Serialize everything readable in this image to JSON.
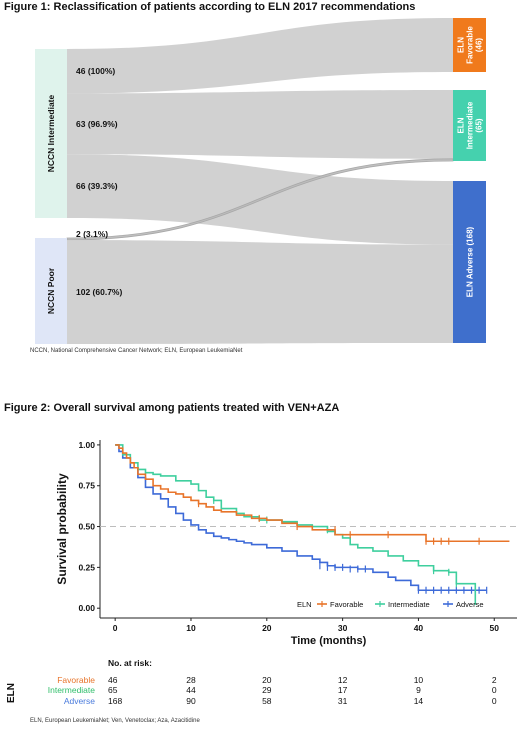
{
  "figure1": {
    "title": "Figure 1: Reclassification of patients according to ELN 2017 recommendations",
    "footnote": "NCCN, National Comprehensive Cancer Network; ELN, European LeukemiaNet"
  },
  "figure2": {
    "title": "Figure 2: Overall survival among patients treated with VEN+AZA",
    "footnote": "ELN, European LeukemiaNet; Ven, Venetoclax; Aza, Azacitidine"
  },
  "chart_data": [
    {
      "type": "sankey",
      "source_nodes": [
        {
          "name": "NCCN Intermediate",
          "color": "#dff3ec"
        },
        {
          "name": "NCCN Poor",
          "color": "#dfe6f7"
        }
      ],
      "target_nodes": [
        {
          "name": "ELN Favorable (46)",
          "color": "#f07a1c"
        },
        {
          "name": "ELN Intermediate (65)",
          "color": "#45d1ae"
        },
        {
          "name": "ELN Adverse (168)",
          "color": "#3f6fcc"
        }
      ],
      "flows": [
        {
          "from": "NCCN Intermediate",
          "to": "ELN Favorable (46)",
          "value": 46,
          "label": "46 (100%)"
        },
        {
          "from": "NCCN Intermediate",
          "to": "ELN Intermediate (65)",
          "value": 63,
          "label": "63 (96.9%)"
        },
        {
          "from": "NCCN Intermediate",
          "to": "ELN Adverse (168)",
          "value": 66,
          "label": "66 (39.3%)"
        },
        {
          "from": "NCCN Poor",
          "to": "ELN Intermediate (65)",
          "value": 2,
          "label": "2 (3.1%)"
        },
        {
          "from": "NCCN Poor",
          "to": "ELN Adverse (168)",
          "value": 102,
          "label": "102 (60.7%)"
        }
      ]
    },
    {
      "type": "line",
      "subtype": "kaplan-meier",
      "xlabel": "Time (months)",
      "ylabel": "Survival probability",
      "xlim": [
        -2,
        53
      ],
      "ylim": [
        -0.06,
        1.03
      ],
      "xticks": [
        0,
        10,
        20,
        30,
        40,
        50
      ],
      "yticks": [
        0.0,
        0.25,
        0.5,
        0.75,
        1.0
      ],
      "ytick_labels": [
        "0.00",
        "0.25",
        "0.50",
        "0.75",
        "1.00"
      ],
      "reference_line": 0.5,
      "legend_title": "ELN",
      "legend_position": "bottom-inside",
      "series": [
        {
          "name": "Favorable",
          "color": "#e8742a",
          "points": [
            [
              0,
              1.0
            ],
            [
              0.5,
              0.98
            ],
            [
              1,
              0.95
            ],
            [
              1.5,
              0.92
            ],
            [
              2,
              0.89
            ],
            [
              2.5,
              0.86
            ],
            [
              3,
              0.82
            ],
            [
              4,
              0.79
            ],
            [
              5,
              0.75
            ],
            [
              6,
              0.73
            ],
            [
              7,
              0.71
            ],
            [
              8,
              0.7
            ],
            [
              9,
              0.68
            ],
            [
              10,
              0.66
            ],
            [
              11,
              0.64
            ],
            [
              12,
              0.62
            ],
            [
              13,
              0.6
            ],
            [
              14,
              0.59
            ],
            [
              16,
              0.57
            ],
            [
              18,
              0.55
            ],
            [
              20,
              0.54
            ],
            [
              22,
              0.52
            ],
            [
              24,
              0.5
            ],
            [
              26,
              0.48
            ],
            [
              27,
              0.48
            ],
            [
              28,
              0.48
            ],
            [
              29,
              0.45
            ],
            [
              31,
              0.45
            ],
            [
              35,
              0.45
            ],
            [
              40,
              0.45
            ],
            [
              41,
              0.41
            ],
            [
              48,
              0.41
            ],
            [
              52,
              0.41
            ]
          ],
          "censors": [
            [
              11,
              0.64
            ],
            [
              19,
              0.55
            ],
            [
              24,
              0.5
            ],
            [
              29,
              0.48
            ],
            [
              31,
              0.45
            ],
            [
              36,
              0.45
            ],
            [
              41,
              0.41
            ],
            [
              42,
              0.41
            ],
            [
              43,
              0.41
            ],
            [
              44,
              0.41
            ],
            [
              48,
              0.41
            ]
          ]
        },
        {
          "name": "Intermediate",
          "color": "#3fcf9e",
          "points": [
            [
              0,
              1.0
            ],
            [
              1,
              0.94
            ],
            [
              2,
              0.89
            ],
            [
              3,
              0.85
            ],
            [
              4,
              0.83
            ],
            [
              5,
              0.82
            ],
            [
              6,
              0.81
            ],
            [
              8,
              0.78
            ],
            [
              10,
              0.76
            ],
            [
              11,
              0.72
            ],
            [
              12,
              0.68
            ],
            [
              13,
              0.66
            ],
            [
              14,
              0.61
            ],
            [
              16,
              0.58
            ],
            [
              17,
              0.56
            ],
            [
              19,
              0.54
            ],
            [
              21,
              0.54
            ],
            [
              22,
              0.53
            ],
            [
              24,
              0.51
            ],
            [
              26,
              0.5
            ],
            [
              28,
              0.47
            ],
            [
              29,
              0.45
            ],
            [
              30,
              0.43
            ],
            [
              31,
              0.39
            ],
            [
              32,
              0.37
            ],
            [
              34,
              0.35
            ],
            [
              36,
              0.32
            ],
            [
              38,
              0.29
            ],
            [
              40,
              0.26
            ],
            [
              42,
              0.23
            ],
            [
              44,
              0.22
            ],
            [
              45,
              0.15
            ],
            [
              46,
              0.15
            ],
            [
              47,
              0.15
            ],
            [
              47.5,
              0.02
            ]
          ],
          "censors": [
            [
              13,
              0.66
            ],
            [
              20,
              0.54
            ],
            [
              28,
              0.48
            ],
            [
              42,
              0.23
            ],
            [
              44,
              0.22
            ],
            [
              45,
              0.15
            ]
          ]
        },
        {
          "name": "Adverse",
          "color": "#3d6ad8",
          "points": [
            [
              0,
              1.0
            ],
            [
              0.5,
              0.96
            ],
            [
              1,
              0.92
            ],
            [
              2,
              0.86
            ],
            [
              3,
              0.8
            ],
            [
              4,
              0.74
            ],
            [
              5,
              0.7
            ],
            [
              6,
              0.67
            ],
            [
              7,
              0.62
            ],
            [
              8,
              0.58
            ],
            [
              9,
              0.54
            ],
            [
              10,
              0.51
            ],
            [
              11,
              0.48
            ],
            [
              12,
              0.46
            ],
            [
              13,
              0.44
            ],
            [
              14,
              0.43
            ],
            [
              15,
              0.42
            ],
            [
              16,
              0.41
            ],
            [
              17,
              0.4
            ],
            [
              18,
              0.39
            ],
            [
              20,
              0.37
            ],
            [
              22,
              0.35
            ],
            [
              24,
              0.32
            ],
            [
              26,
              0.3
            ],
            [
              27,
              0.28
            ],
            [
              28,
              0.26
            ],
            [
              29,
              0.25
            ],
            [
              31,
              0.25
            ],
            [
              32,
              0.24
            ],
            [
              34,
              0.22
            ],
            [
              36,
              0.19
            ],
            [
              37,
              0.17
            ],
            [
              39,
              0.14
            ],
            [
              40,
              0.11
            ],
            [
              45,
              0.11
            ],
            [
              49,
              0.11
            ]
          ],
          "censors": [
            [
              27,
              0.26
            ],
            [
              28,
              0.25
            ],
            [
              29,
              0.25
            ],
            [
              30,
              0.25
            ],
            [
              31,
              0.24
            ],
            [
              32,
              0.24
            ],
            [
              33,
              0.24
            ],
            [
              40,
              0.11
            ],
            [
              41,
              0.11
            ],
            [
              42,
              0.11
            ],
            [
              43,
              0.11
            ],
            [
              44,
              0.11
            ],
            [
              45,
              0.11
            ],
            [
              46,
              0.11
            ],
            [
              47,
              0.11
            ],
            [
              48,
              0.11
            ],
            [
              49,
              0.11
            ]
          ]
        }
      ],
      "risk_table": {
        "title": "No. at risk:",
        "strata_label": "ELN",
        "times": [
          0,
          10,
          20,
          30,
          40,
          50
        ],
        "rows": [
          {
            "name": "Favorable",
            "color": "#e8742a",
            "values": [
              "46",
              "28",
              "20",
              "12",
              "10",
              "2"
            ]
          },
          {
            "name": "Intermediate",
            "color": "#2fbe6a",
            "values": [
              "65",
              "44",
              "29",
              "17",
              "9",
              "0"
            ]
          },
          {
            "name": "Adverse",
            "color": "#4a7bdc",
            "values": [
              "168",
              "90",
              "58",
              "31",
              "14",
              "0"
            ]
          }
        ]
      }
    }
  ]
}
